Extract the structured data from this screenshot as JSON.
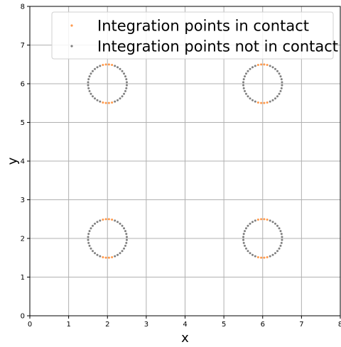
{
  "chart_data": {
    "type": "scatter",
    "title": "",
    "xlabel": "x",
    "ylabel": "y",
    "xlim": [
      0,
      8
    ],
    "ylim": [
      0,
      8
    ],
    "xticks": [
      0,
      1,
      2,
      3,
      4,
      5,
      6,
      7,
      8
    ],
    "yticks": [
      0,
      1,
      2,
      3,
      4,
      5,
      6,
      7,
      8
    ],
    "grid": true,
    "legend_position": "top-right",
    "circles": [
      {
        "cx": 2,
        "cy": 6,
        "r": 0.5
      },
      {
        "cx": 6,
        "cy": 6,
        "r": 0.5
      },
      {
        "cx": 2,
        "cy": 2,
        "r": 0.5
      },
      {
        "cx": 6,
        "cy": 2,
        "r": 0.5
      }
    ],
    "points_per_circle": 40,
    "contact_dy_threshold": 0.48,
    "series": [
      {
        "name": "Integration points in contact",
        "color": "#ff9a4d"
      },
      {
        "name": "Integration points not in contact",
        "color": "#808080"
      }
    ]
  },
  "colors": {
    "grid": "#b0b0b0",
    "axis": "#000000"
  }
}
